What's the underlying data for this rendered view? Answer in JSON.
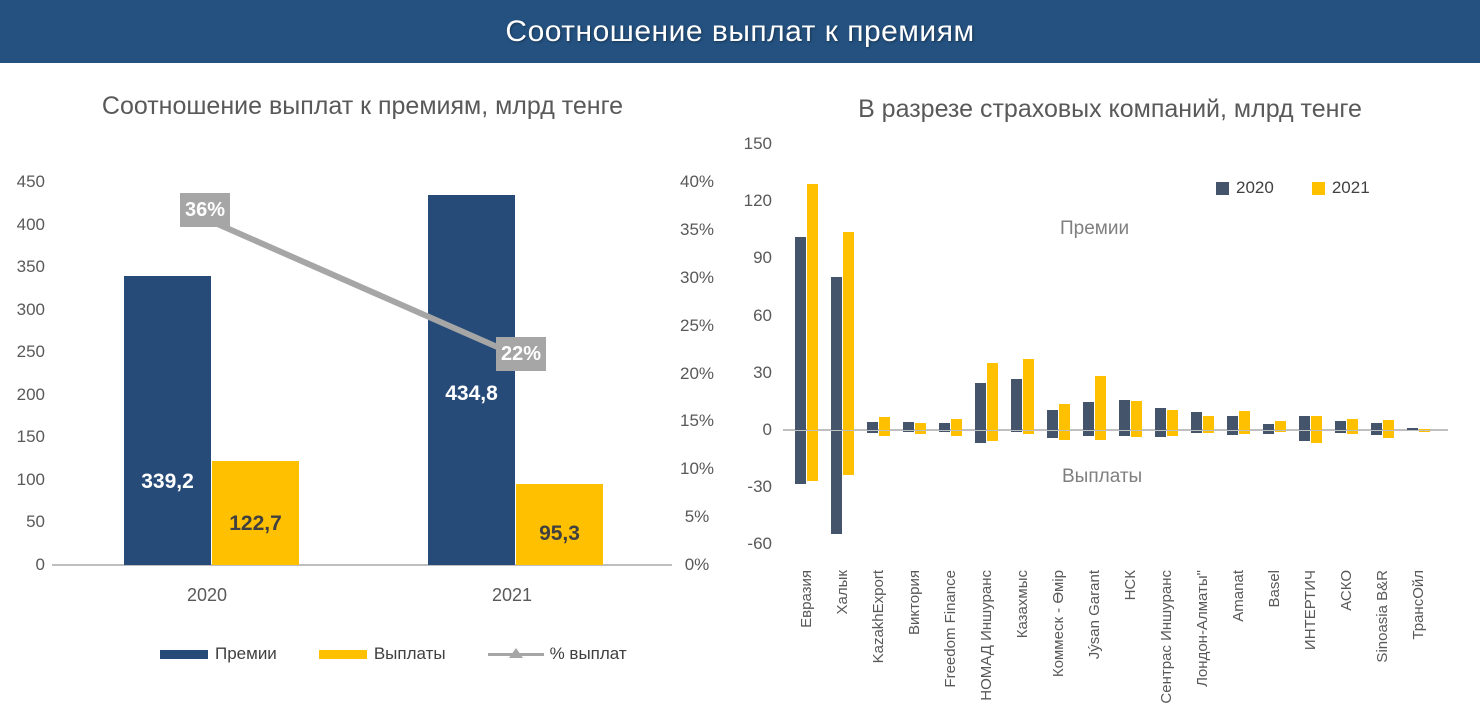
{
  "header": {
    "title": "Соотношение выплат к премиям"
  },
  "colors": {
    "header_bg": "#24517F",
    "premium_blue": "#264B78",
    "year2020_blue": "#44546A",
    "payout_yellow": "#FFC000",
    "pct_gray": "#A6A6A6",
    "axis_gray": "#BFBFBF",
    "tick_text": "#595959",
    "yellow_label_text": "#404040"
  },
  "chart_data": [
    {
      "type": "bar",
      "title": "Соотношение выплат к премиям, млрд тенге",
      "categories": [
        "2020",
        "2021"
      ],
      "series": [
        {
          "name": "Премии",
          "color": "#264B78",
          "values": [
            339.2,
            434.8
          ],
          "label_color": "#FFFFFF"
        },
        {
          "name": "Выплаты",
          "color": "#FFC000",
          "values": [
            122.7,
            95.3
          ],
          "label_color": "#404040"
        }
      ],
      "line_series": {
        "name": "% выплат",
        "color": "#A6A6A6",
        "values_pct": [
          36,
          22
        ]
      },
      "y_axis": {
        "min": 0,
        "max": 450,
        "step": 50
      },
      "pct_axis": {
        "min": 0,
        "max": 40,
        "step": 5,
        "suffix": "%"
      },
      "legend": [
        "Премии",
        "Выплаты",
        "% выплат"
      ],
      "grid": false
    },
    {
      "type": "bar",
      "title": "В разрезе страховых компаний, млрд тенге",
      "legend": [
        "2020",
        "2021"
      ],
      "annotations": {
        "above": "Премии",
        "below": "Выплаты"
      },
      "y_axis": {
        "min": -60,
        "max": 150,
        "step": 30
      },
      "series_colors": {
        "2020": "#44546A",
        "2021": "#FFC000"
      },
      "companies": [
        {
          "name": "Евразия",
          "premium_2020": 101,
          "premium_2021": 129,
          "payout_2020": -28,
          "payout_2021": -26
        },
        {
          "name": "Халык",
          "premium_2020": 80,
          "premium_2021": 104,
          "payout_2020": -54,
          "payout_2021": -23
        },
        {
          "name": "KazakhExport",
          "premium_2020": 4,
          "premium_2021": 6.9,
          "payout_2020": -1,
          "payout_2021": -2.4
        },
        {
          "name": "Виктория",
          "premium_2020": 4.2,
          "premium_2021": 3.8,
          "payout_2020": -0.6,
          "payout_2021": -1.7
        },
        {
          "name": "Freedom Finance",
          "premium_2020": 3.5,
          "premium_2021": 5.9,
          "payout_2020": -0.3,
          "payout_2021": -2.8
        },
        {
          "name": "НОМАД Иншуранс",
          "premium_2020": 24.6,
          "premium_2021": 35,
          "payout_2020": -6.2,
          "payout_2021": -5.5
        },
        {
          "name": "Казахмыс",
          "premium_2020": 26.7,
          "premium_2021": 37.5,
          "payout_2020": -0.4,
          "payout_2021": -1.7
        },
        {
          "name": "Коммеск - Өмір",
          "premium_2020": 10.7,
          "premium_2021": 13.7,
          "payout_2020": -3.5,
          "payout_2021": -4.5
        },
        {
          "name": "Jýsan Garant",
          "premium_2020": 14.6,
          "premium_2021": 28.4,
          "payout_2020": -2.8,
          "payout_2021": -4.9
        },
        {
          "name": "НСК",
          "premium_2020": 15.9,
          "premium_2021": 15.1,
          "payout_2020": -2.5,
          "payout_2021": -3
        },
        {
          "name": "Сентрас Иншуранс",
          "premium_2020": 11.6,
          "premium_2021": 10.4,
          "payout_2020": -2.9,
          "payout_2021": -2.4
        },
        {
          "name": "Лондон-Алматы\"",
          "premium_2020": 9.7,
          "premium_2021": 7.5,
          "payout_2020": -1,
          "payout_2021": -1.2
        },
        {
          "name": "Amanat",
          "premium_2020": 7.1,
          "premium_2021": 9.9,
          "payout_2020": -2,
          "payout_2021": -1.5
        },
        {
          "name": "Basel",
          "premium_2020": 3.1,
          "premium_2021": 4.9,
          "payout_2020": -1.5,
          "payout_2021": -0.5
        },
        {
          "name": "ИНТЕРТИЧ",
          "premium_2020": 7.5,
          "premium_2021": 7.5,
          "payout_2020": -5.5,
          "payout_2021": -6.1
        },
        {
          "name": "АСКО",
          "premium_2020": 4.7,
          "premium_2021": 5.7,
          "payout_2020": -1,
          "payout_2021": -1.6
        },
        {
          "name": "Sinoasia B&R",
          "premium_2020": 3.6,
          "premium_2021": 5.2,
          "payout_2020": -2,
          "payout_2021": -3.5
        },
        {
          "name": "ТрансОйл",
          "premium_2020": 0.8,
          "premium_2021": 0.5,
          "payout_2020": -0.1,
          "payout_2021": -0.3
        }
      ],
      "grid": false
    }
  ]
}
